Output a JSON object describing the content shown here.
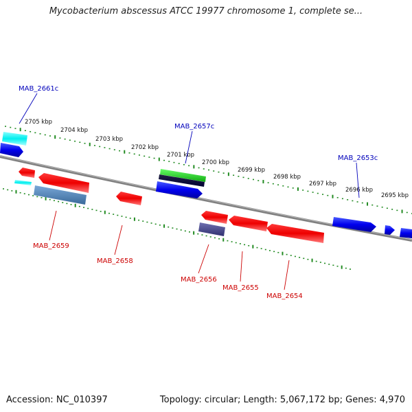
{
  "title": "Mycobacterium abscessus ATCC 19977 chromosome 1, complete se...",
  "footer": {
    "accession": "Accession: NC_010397",
    "info": "Topology: circular; Length: 5,067,172 bp; Genes: 4,970"
  },
  "colors": {
    "forward_gene": "#0000ee",
    "reverse_gene": "#ee1111",
    "forward_label": "#0000bb",
    "reverse_label": "#cc0000",
    "tick": "#228b22",
    "backbone": "#808080"
  },
  "ruler": {
    "ticks": [
      {
        "label": "2705 kbp"
      },
      {
        "label": "2704 kbp"
      },
      {
        "label": "2703 kbp"
      },
      {
        "label": "2702 kbp"
      },
      {
        "label": "2701 kbp"
      },
      {
        "label": "2700 kbp"
      },
      {
        "label": "2699 kbp"
      },
      {
        "label": "2698 kbp"
      },
      {
        "label": "2697 kbp"
      },
      {
        "label": "2696 kbp"
      },
      {
        "label": "2695 kbp"
      }
    ]
  },
  "genes": {
    "labeled": [
      {
        "label": "MAB_2661c",
        "strand": "forward"
      },
      {
        "label": "MAB_2657c",
        "strand": "forward"
      },
      {
        "label": "MAB_2653c",
        "strand": "forward"
      },
      {
        "label": "MAB_2659",
        "strand": "reverse"
      },
      {
        "label": "MAB_2658",
        "strand": "reverse"
      },
      {
        "label": "MAB_2656",
        "strand": "reverse"
      },
      {
        "label": "MAB_2655",
        "strand": "reverse"
      },
      {
        "label": "MAB_2654",
        "strand": "reverse"
      }
    ]
  }
}
